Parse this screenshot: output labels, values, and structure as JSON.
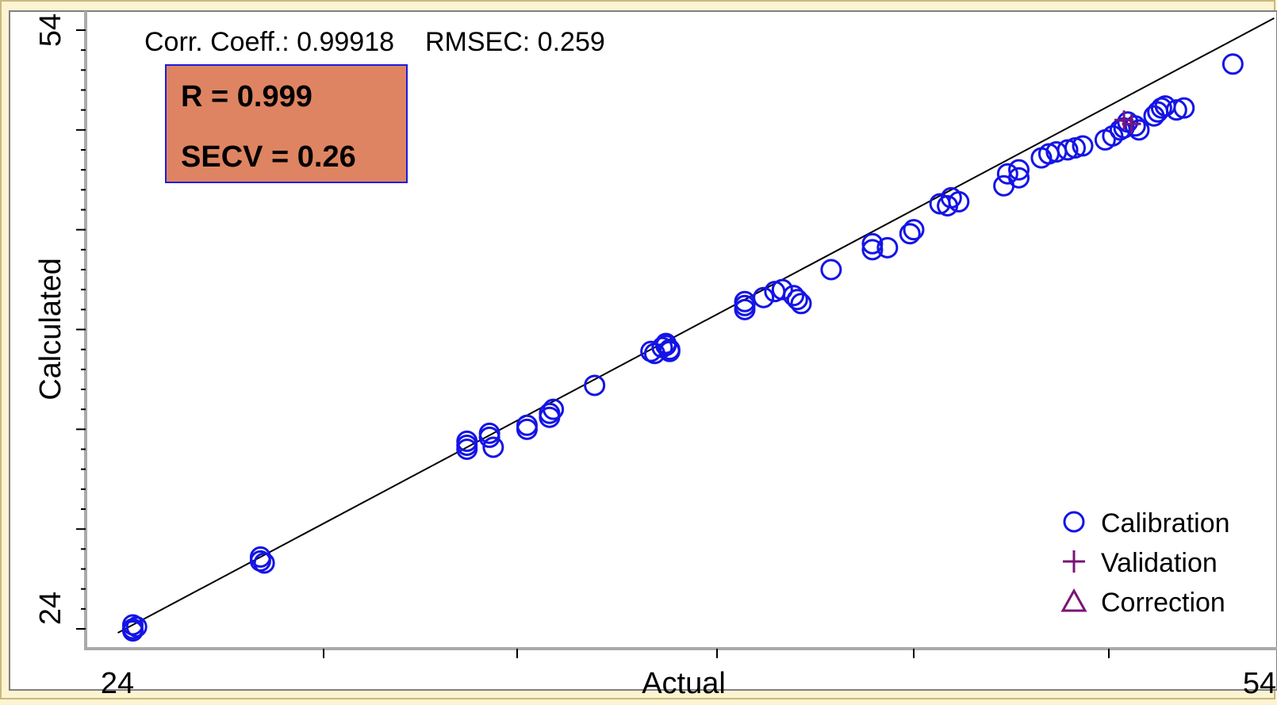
{
  "chart_data": {
    "type": "scatter",
    "title": "",
    "xlabel": "Actual",
    "ylabel": "Calculated",
    "xlim": [
      24,
      54
    ],
    "ylim": [
      24,
      54
    ],
    "x_tick_labels": [
      "24",
      "54"
    ],
    "y_tick_labels": [
      "24",
      "54"
    ],
    "grid": false,
    "legend_position": "bottom-right",
    "stats_line": {
      "corr_label": "Corr. Coeff.: 0.99918",
      "rmsec_label": "RMSEC: 0.259"
    },
    "annotation_box": {
      "line1": "R = 0.999",
      "line2": "SECV = 0.26",
      "fill_color": "#DF8462",
      "border_color": "#1C1CE0"
    },
    "fit_line": {
      "x": [
        23.8,
        54.6
      ],
      "y": [
        23.8,
        54.6
      ]
    },
    "legend": [
      {
        "label": "Calibration",
        "marker": "circle",
        "color": "#1414E6"
      },
      {
        "label": "Validation",
        "marker": "plus",
        "color": "#7A1477"
      },
      {
        "label": "Correction",
        "marker": "triangle",
        "color": "#7A1477"
      }
    ],
    "series": [
      {
        "name": "Calibration",
        "color": "#1414E6",
        "x": [
          24.2,
          24.2,
          24.3,
          24.2,
          27.6,
          27.6,
          27.7,
          33.1,
          33.1,
          33.1,
          33.7,
          33.8,
          33.7,
          34.7,
          34.7,
          35.3,
          35.3,
          35.4,
          36.5,
          38.0,
          38.1,
          38.3,
          38.4,
          38.4,
          38.5,
          38.5,
          40.5,
          40.5,
          40.5,
          41.0,
          41.3,
          41.5,
          41.8,
          41.9,
          42.0,
          42.8,
          43.9,
          43.9,
          44.3,
          44.9,
          45.0,
          45.7,
          45.9,
          46.0,
          46.2,
          47.4,
          47.5,
          47.8,
          47.8,
          48.4,
          48.6,
          48.8,
          49.1,
          49.3,
          49.5,
          50.1,
          50.3,
          50.5,
          50.6,
          50.7,
          50.9,
          51.0,
          51.4,
          51.5,
          51.6,
          51.7,
          52.0,
          52.2,
          53.5
        ],
        "y": [
          24.2,
          24.0,
          24.1,
          23.9,
          27.4,
          27.6,
          27.3,
          33.4,
          33.2,
          33.0,
          33.6,
          33.1,
          33.8,
          34.0,
          34.2,
          34.8,
          34.6,
          35.0,
          36.2,
          37.9,
          37.8,
          38.1,
          38.2,
          38.3,
          37.9,
          38.0,
          40.0,
          40.2,
          40.4,
          40.6,
          40.9,
          41.0,
          40.7,
          40.5,
          40.3,
          42.0,
          43.0,
          43.3,
          43.1,
          43.8,
          44.0,
          45.3,
          45.2,
          45.6,
          45.4,
          46.2,
          46.8,
          47.0,
          46.6,
          47.6,
          47.8,
          47.9,
          48.0,
          48.1,
          48.2,
          48.5,
          48.7,
          49.0,
          49.1,
          49.4,
          49.2,
          49.0,
          49.7,
          49.9,
          50.1,
          50.2,
          50.0,
          50.1,
          52.3
        ]
      }
    ]
  }
}
